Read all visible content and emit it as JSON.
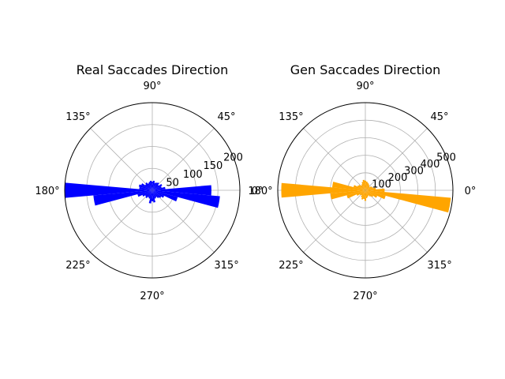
{
  "chart_data": [
    {
      "type": "polar-bar",
      "title": "Real Saccades Direction",
      "color": "#0000ff",
      "angle_unit": "degrees",
      "angle_ticks": [
        "0°",
        "45°",
        "90°",
        "135°",
        "180°",
        "225°",
        "270°",
        "315°"
      ],
      "rticks": [
        50,
        100,
        150,
        200
      ],
      "rlim": [
        0,
        200
      ],
      "bins": {
        "angles": [
          0,
          10,
          20,
          30,
          40,
          50,
          60,
          70,
          80,
          90,
          100,
          110,
          120,
          130,
          140,
          150,
          160,
          170,
          180,
          190,
          200,
          210,
          220,
          230,
          240,
          250,
          260,
          270,
          280,
          290,
          300,
          310,
          320,
          330,
          340,
          350
        ],
        "values": [
          135,
          30,
          22,
          25,
          18,
          22,
          20,
          18,
          22,
          20,
          22,
          20,
          18,
          22,
          20,
          28,
          32,
          30,
          200,
          135,
          35,
          25,
          20,
          22,
          18,
          20,
          30,
          25,
          28,
          20,
          18,
          22,
          25,
          30,
          60,
          155
        ]
      }
    },
    {
      "type": "polar-bar",
      "title": "Gen Saccades Direction",
      "color": "#ffa500",
      "angle_unit": "degrees",
      "angle_ticks": [
        "0°",
        "45°",
        "90°",
        "135°",
        "180°",
        "225°",
        "270°",
        "315°"
      ],
      "rticks": [
        100,
        200,
        300,
        400,
        500
      ],
      "rlim": [
        0,
        500
      ],
      "bins": {
        "angles": [
          0,
          10,
          20,
          30,
          40,
          50,
          60,
          70,
          80,
          90,
          100,
          110,
          120,
          130,
          140,
          150,
          160,
          170,
          180,
          190,
          200,
          210,
          220,
          230,
          240,
          250,
          260,
          270,
          280,
          290,
          300,
          310,
          320,
          330,
          340,
          350
        ],
        "values": [
          110,
          60,
          45,
          40,
          30,
          35,
          40,
          45,
          50,
          55,
          60,
          50,
          40,
          35,
          45,
          50,
          70,
          190,
          480,
          200,
          110,
          55,
          40,
          35,
          45,
          55,
          50,
          60,
          45,
          40,
          35,
          45,
          55,
          75,
          120,
          490
        ]
      }
    }
  ]
}
